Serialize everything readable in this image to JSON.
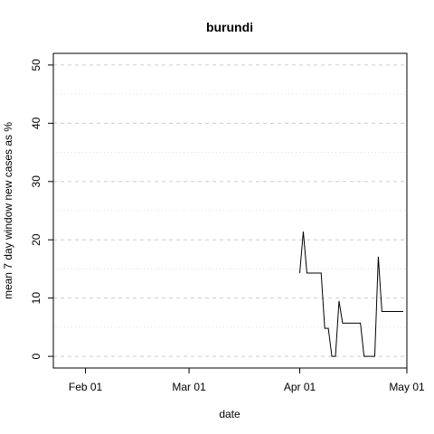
{
  "chart_data": {
    "type": "line",
    "title": "burundi",
    "xlabel": "date",
    "ylabel": "mean  7  day window new cases as %",
    "x_ticks": [
      "2020-02-01",
      "2020-03-01",
      "2020-04-01",
      "2020-05-01"
    ],
    "x_tick_labels": [
      "Feb 01",
      "Mar 01",
      "Apr 01",
      "May 01"
    ],
    "y_ticks": [
      0,
      10,
      20,
      30,
      40,
      50
    ],
    "y_tick_labels": [
      "0",
      "10",
      "20",
      "30",
      "40",
      "50"
    ],
    "xlim": [
      "2020-01-23",
      "2020-05-01"
    ],
    "ylim": [
      -2,
      52
    ],
    "grid": {
      "major_y": [
        0,
        10,
        20,
        30,
        40,
        50
      ],
      "minor_y": [
        5,
        15,
        25,
        35,
        45
      ],
      "style": "dashed"
    },
    "series": [
      {
        "x": [
          "2020-04-01",
          "2020-04-02",
          "2020-04-03",
          "2020-04-04",
          "2020-04-05",
          "2020-04-06",
          "2020-04-07",
          "2020-04-08",
          "2020-04-09",
          "2020-04-10",
          "2020-04-11",
          "2020-04-12",
          "2020-04-13",
          "2020-04-14",
          "2020-04-15",
          "2020-04-16",
          "2020-04-17",
          "2020-04-18",
          "2020-04-19",
          "2020-04-20",
          "2020-04-21",
          "2020-04-22",
          "2020-04-23",
          "2020-04-24",
          "2020-04-25",
          "2020-04-26",
          "2020-04-27",
          "2020-04-28",
          "2020-04-29",
          "2020-04-30"
        ],
        "y": [
          14.3,
          21.4,
          14.3,
          14.3,
          14.3,
          14.3,
          14.3,
          4.8,
          4.8,
          0,
          0,
          9.5,
          5.7,
          5.7,
          5.7,
          5.7,
          5.7,
          5.7,
          0,
          0,
          0,
          0,
          17.1,
          7.7,
          7.7,
          7.7,
          7.7,
          7.7,
          7.7,
          7.7
        ],
        "color": "#000000"
      }
    ]
  }
}
